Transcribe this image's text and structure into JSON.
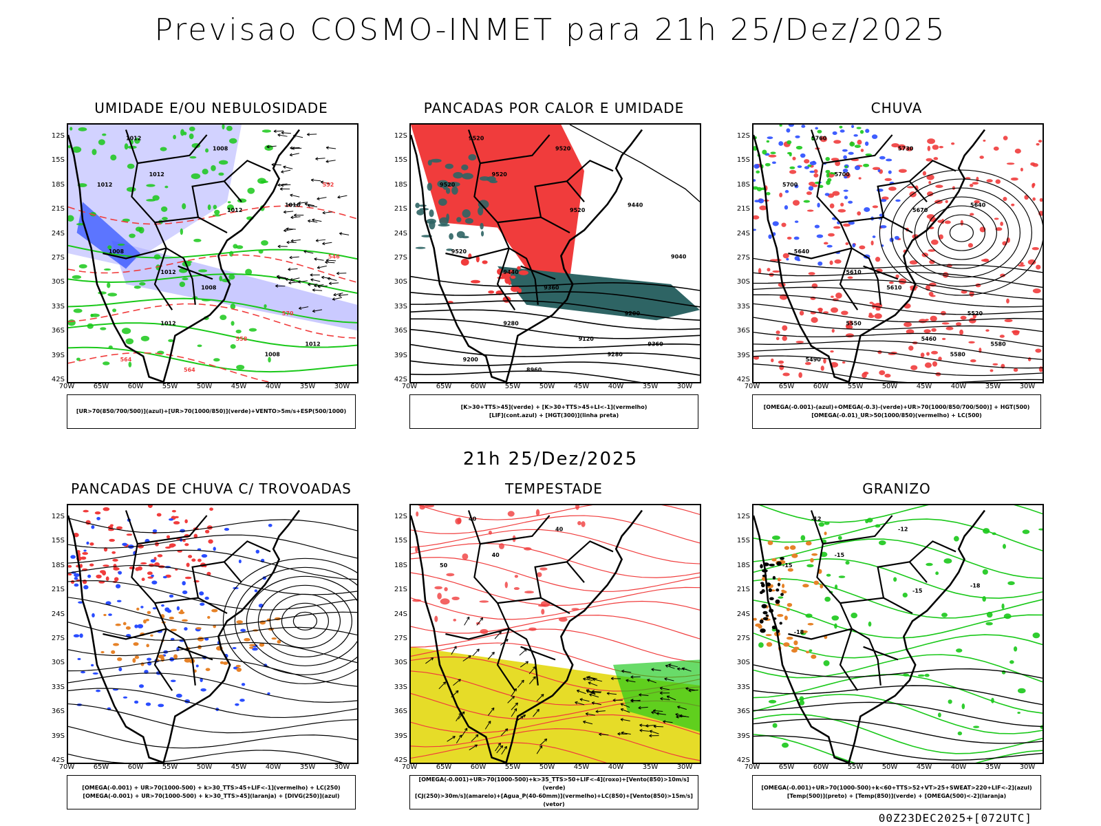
{
  "title": "Previsao COSMO-INMET  para 21h 25/Dez/2025",
  "mid_date": "21h 25/Dez/2025",
  "footer": "00Z23DEC2025+[072UTC]",
  "lat_labels": [
    "12S",
    "15S",
    "18S",
    "21S",
    "24S",
    "27S",
    "30S",
    "33S",
    "36S",
    "39S",
    "42S"
  ],
  "lon_labels": [
    "70W",
    "65W",
    "60W",
    "55W",
    "50W",
    "45W",
    "40W",
    "35W",
    "30W"
  ],
  "panels": [
    {
      "title": "UMIDADE E/OU NEBULOSIDADE",
      "legend": [
        "[UR>70(850/700/500)](azul)+[UR>70(1000/850)](verde)+VENTO>5m/s+ESP(500/1000)"
      ],
      "labels": [
        "1012",
        "1008",
        "1012",
        "1012",
        "1012",
        "1008",
        "1016",
        "1012",
        "1008",
        "1012",
        "1008",
        "1012",
        "570",
        "564",
        "558",
        "546",
        "564",
        "552"
      ]
    },
    {
      "title": "PANCADAS POR CALOR E UMIDADE",
      "legend": [
        "[K>30+TTS>45](verde) + [K>30+TTS>45+LI<-1](vermelho)",
        "[LIF](cont.azul) + [HGT(300)](linha preta)"
      ],
      "labels": [
        "9520",
        "9520",
        "9520",
        "9520",
        "9520",
        "9520",
        "9440",
        "9440",
        "9360",
        "9360",
        "9280",
        "9280",
        "9200",
        "9200",
        "9120",
        "9040",
        "8960"
      ]
    },
    {
      "title": "CHUVA",
      "legend": [
        "[OMEGA(-0.001)-(azul)+OMEGA(-0.3)-(verde)+UR>70(1000/850/700/500)] + HGT(500)",
        "[OMEGA(-0.01)_UR>50(1000/850)(vermelho) + LC(500)"
      ],
      "labels": [
        "5760",
        "5730",
        "5700",
        "5700",
        "5670",
        "5640",
        "5640",
        "5610",
        "5610",
        "5580",
        "5580",
        "5550",
        "5520",
        "5490",
        "5460"
      ]
    },
    {
      "title": "PANCADAS DE CHUVA C/ TROVOADAS",
      "legend": [
        "[OMEGA(-0.001) + UR>70(1000-500) + k>30_TTS>45+LIF<-1](vermelho) + LC(250)",
        "[OMEGA(-0.001) + UR>70(1000-500) + k>30_TTS>45](laranja) + [DIVG(250)](azul)"
      ],
      "labels": []
    },
    {
      "title": "TEMPESTADE",
      "legend": [
        "[OMEGA(-0.001)+UR>70(1000-500)+k>35_TTS>50+LIF<-4](roxo)+[Vento(850)>10m/s](verde)",
        "[CJ(250)>30m/s](amarelo)+[Agua_P(40-60mm)](vermelho)+LC(850)+[Vento(850)>15m/s](vetor)"
      ],
      "labels": [
        "40",
        "40",
        "40",
        "50"
      ]
    },
    {
      "title": "GRANIZO",
      "legend": [
        "[OMEGA(-0.001)+UR>70(1000-500)+k<60+TTS>52+VT>25+SWEAT>220+LIF<-2](azul)",
        "[Temp(500)](preto) + [Temp(850)](verde) + [OMEGA(500)<-2](laranja)"
      ],
      "labels": [
        "-12",
        "-12",
        "-15",
        "-15",
        "-15",
        "-18",
        "-18"
      ]
    }
  ],
  "colors": {
    "red": "#f03c3c",
    "green": "#19c819",
    "blue": "#2a4dff",
    "lavender": "#b4b4ff",
    "teal": "#2e6464",
    "yellow": "#e6dc28",
    "orange": "#e68228"
  }
}
